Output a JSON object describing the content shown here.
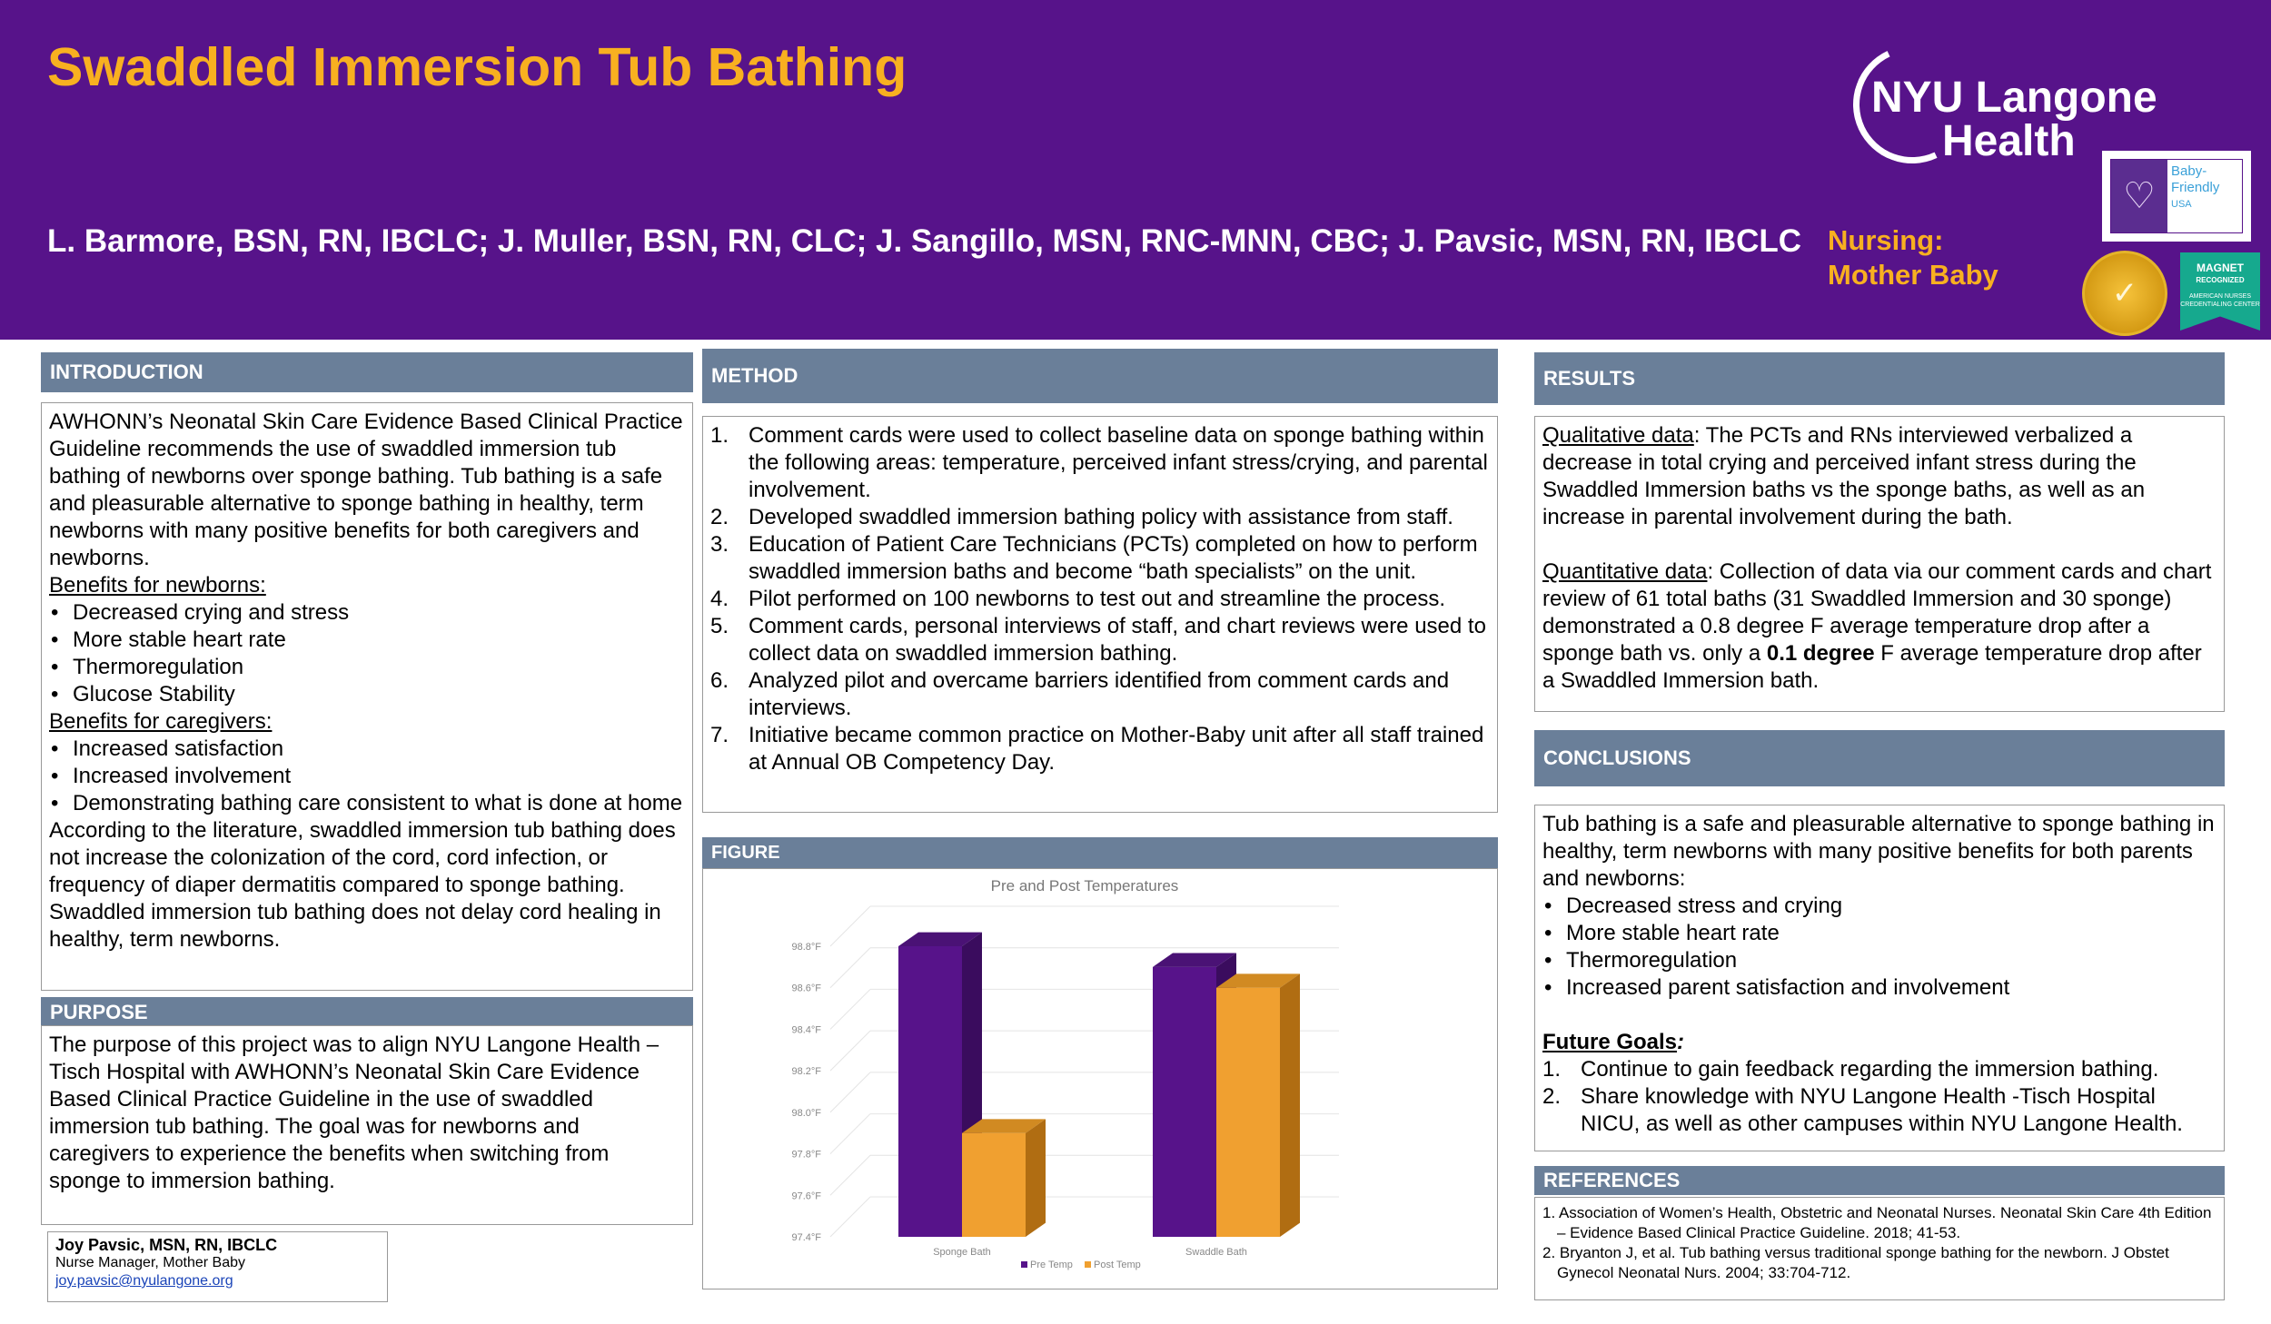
{
  "header": {
    "title": "Swaddled Immersion Tub Bathing",
    "authors": "L. Barmore, BSN, RN, IBCLC; J. Muller, BSN, RN, CLC; J. Sangillo, MSN, RNC-MNN, CBC; J. Pavsic, MSN, RN, IBCLC",
    "dept_line1": "Nursing:",
    "dept_line2": "Mother Baby",
    "logo_line1": "NYU Langone",
    "logo_line2": "Health",
    "bf_line1": "Baby-",
    "bf_line2": "Friendly",
    "bf_line3": "USA",
    "magnet_line1": "MAGNET",
    "magnet_line2": "RECOGNIZED",
    "magnet_line3": "AMERICAN NURSES CREDENTIALING CENTER"
  },
  "intro": {
    "heading": "INTRODUCTION",
    "p1": "AWHONN’s Neonatal Skin Care Evidence Based Clinical Practice Guideline recommends the use of swaddled immersion tub bathing of newborns over sponge bathing. Tub bathing is a safe and pleasurable alternative to sponge bathing in healthy, term newborns with many positive benefits for both caregivers and newborns.",
    "newborns_heading": "Benefits for newborns:",
    "newborns": [
      "Decreased crying and stress",
      "More stable heart rate",
      "Thermoregulation",
      "Glucose Stability"
    ],
    "caregivers_heading": "Benefits for caregivers:",
    "caregivers": [
      "Increased satisfaction",
      "Increased involvement",
      "Demonstrating bathing care consistent to what is done at home"
    ],
    "p2": "According to the literature, swaddled immersion tub bathing does not increase the colonization of the cord, cord infection, or frequency of diaper dermatitis compared to sponge bathing. Swaddled immersion tub bathing does not delay cord healing in healthy, term newborns."
  },
  "purpose": {
    "heading": "PURPOSE",
    "text": "The purpose of this project was to align NYU Langone Health – Tisch Hospital with AWHONN’s Neonatal Skin Care Evidence Based Clinical Practice Guideline in the use of swaddled immersion tub bathing. The goal was for newborns and caregivers to experience the benefits when switching from sponge to immersion bathing."
  },
  "contact": {
    "name": "Joy Pavsic, MSN, RN, IBCLC",
    "role": "Nurse Manager, Mother Baby",
    "email": "joy.pavsic@nyulangone.org"
  },
  "method": {
    "heading": "METHOD",
    "items": [
      "Comment cards were used to collect baseline data on sponge bathing within the following areas:  temperature, perceived infant stress/crying, and parental involvement.",
      "Developed swaddled immersion bathing policy with assistance from staff.",
      "Education of Patient Care Technicians (PCTs) completed on how to perform swaddled immersion baths and become “bath specialists” on the unit.",
      "Pilot performed on 100 newborns to test out and streamline the process.",
      "Comment cards, personal interviews of staff, and chart reviews were used to collect data on swaddled immersion bathing.",
      "Analyzed pilot and overcame barriers identified from comment cards and interviews.",
      "Initiative became common practice on Mother-Baby unit after all staff trained at Annual OB Competency Day."
    ]
  },
  "figure": {
    "heading": "FIGURE"
  },
  "chart_data": {
    "type": "bar",
    "title": "Pre and Post Temperatures",
    "categories": [
      "Sponge Bath",
      "Swaddle Bath"
    ],
    "series": [
      {
        "name": "Pre Temp",
        "values": [
          98.8,
          98.7
        ],
        "color": "#57138a"
      },
      {
        "name": "Post Temp",
        "values": [
          97.9,
          98.6
        ],
        "color": "#f0a030"
      }
    ],
    "yticks": [
      "97.4°F",
      "97.6°F",
      "97.8°F",
      "98.0°F",
      "98.2°F",
      "98.4°F",
      "98.6°F",
      "98.8°F"
    ],
    "ylim": [
      97.4,
      98.8
    ],
    "legend": "bottom"
  },
  "results": {
    "heading": "RESULTS",
    "qual_label": "Qualitative data",
    "qual_text": ": The PCTs and RNs interviewed verbalized a decrease in total crying and perceived infant stress during the Swaddled Immersion baths vs the sponge baths, as well as an increase in parental involvement during the bath.",
    "quant_label": "Quantitative data",
    "quant_text1": ": Collection of data via our comment cards and chart review of 61 total baths (31 Swaddled Immersion and 30 sponge) demonstrated a 0.8 degree F average temperature drop after a sponge bath vs. only a ",
    "quant_bold": "0.1 degree",
    "quant_text2": " F average temperature drop after a Swaddled Immersion bath."
  },
  "conclusions": {
    "heading": "CONCLUSIONS",
    "intro": "Tub bathing is a safe and pleasurable alternative to sponge bathing in healthy, term newborns with many positive benefits for both parents and newborns:",
    "bullets": [
      "Decreased stress and crying",
      "More stable heart rate",
      "Thermoregulation",
      "Increased parent satisfaction and involvement"
    ],
    "goals_label": "Future Goals",
    "goals_colon": ":",
    "goals": [
      "Continue to gain feedback regarding the immersion bathing.",
      "Share knowledge with NYU Langone Health -Tisch Hospital NICU, as well as other campuses within NYU Langone Health."
    ]
  },
  "references": {
    "heading": "REFERENCES",
    "items": [
      "1. Association of Women’s Health, Obstetric and Neonatal Nurses. Neonatal Skin Care 4th Edition – Evidence Based Clinical Practice Guideline. 2018; 41-53.",
      "2. Bryanton J, et al. Tub bathing versus traditional sponge bathing for the newborn. J Obstet Gynecol Neonatal Nurs. 2004; 33:704-712."
    ]
  }
}
